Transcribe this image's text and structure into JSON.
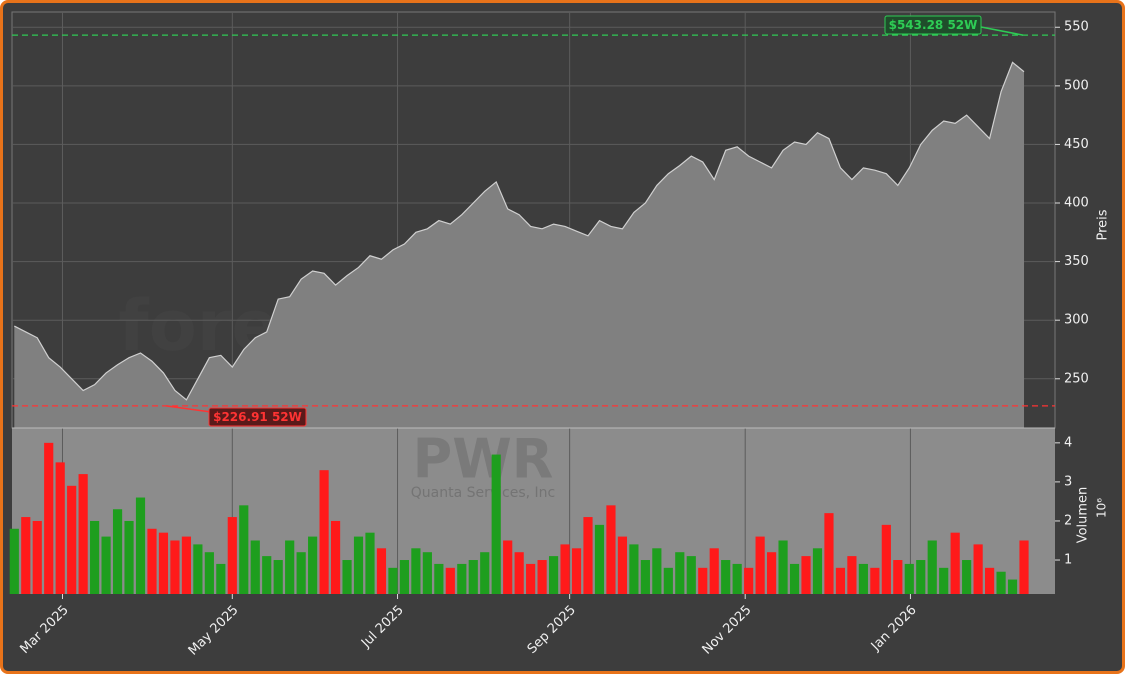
{
  "chart_data": {
    "type": "price-volume",
    "watermark": "forexsignale.trade",
    "symbol": "PWR",
    "company": "Quanta Services, Inc",
    "ylabel": "Preis",
    "y2label": "Volumen",
    "y2_offset": "10⁶",
    "xticks": [
      {
        "value": 4.2,
        "label": "Mar 2025"
      },
      {
        "value": 19,
        "label": "May 2025"
      },
      {
        "value": 33.4,
        "label": "Jul 2025"
      },
      {
        "value": 48.4,
        "label": "Sep 2025"
      },
      {
        "value": 63.7,
        "label": "Nov 2025"
      },
      {
        "value": 78.1,
        "label": "Jan 2026"
      }
    ],
    "xlim": [
      -0.2,
      90.7
    ],
    "ylim": [
      208,
      563
    ],
    "yticks": [
      250,
      300,
      350,
      400,
      450,
      500,
      550
    ],
    "y2lim": [
      0.13,
      4.38
    ],
    "y2ticks": [
      1,
      2,
      3,
      4
    ],
    "grid": true,
    "price_color": "#d0d0d0",
    "area_color": "#808080",
    "up_color": "#1e9e1e",
    "down_color": "#ff1a1a",
    "close": [
      295,
      290,
      285,
      268,
      260,
      250,
      240,
      245,
      255,
      262,
      268,
      272,
      265,
      255,
      240,
      232,
      250,
      268,
      270,
      260,
      275,
      285,
      290,
      318,
      320,
      335,
      342,
      340,
      330,
      338,
      345,
      355,
      352,
      360,
      365,
      375,
      378,
      385,
      382,
      390,
      400,
      410,
      418,
      395,
      390,
      380,
      378,
      382,
      380,
      376,
      372,
      385,
      380,
      378,
      392,
      400,
      415,
      425,
      432,
      440,
      435,
      420,
      445,
      448,
      440,
      435,
      430,
      445,
      452,
      450,
      460,
      455,
      430,
      420,
      430,
      428,
      425,
      415,
      430,
      450,
      462,
      470,
      468,
      475,
      465,
      455,
      495,
      520,
      512
    ],
    "volume": [
      1.8,
      2.1,
      2.0,
      4.0,
      3.5,
      2.9,
      3.2,
      2.0,
      1.6,
      2.3,
      2.0,
      2.6,
      1.8,
      1.7,
      1.5,
      1.6,
      1.4,
      1.2,
      0.9,
      2.1,
      2.4,
      1.5,
      1.1,
      1.0,
      1.5,
      1.2,
      1.6,
      3.3,
      2.0,
      1.0,
      1.6,
      1.7,
      1.3,
      0.8,
      1.0,
      1.3,
      1.2,
      0.9,
      0.8,
      0.9,
      1.0,
      1.2,
      3.7,
      1.5,
      1.2,
      0.9,
      1.0,
      1.1,
      1.4,
      1.3,
      2.1,
      1.9,
      2.4,
      1.6,
      1.4,
      1.0,
      1.3,
      0.8,
      1.2,
      1.1,
      0.8,
      1.3,
      1.0,
      0.9,
      0.8,
      1.6,
      1.2,
      1.5,
      0.9,
      1.1,
      1.3,
      2.2,
      0.8,
      1.1,
      0.9,
      0.8,
      1.9,
      1.0,
      0.9,
      1.0,
      1.5,
      0.8,
      1.7,
      1.0,
      1.4,
      0.8,
      0.7,
      0.5,
      1.5
    ],
    "high_52w": {
      "value": 543.28,
      "label": "$543.28 52W",
      "color": "#2ecc55"
    },
    "low_52w": {
      "value": 226.91,
      "label": "$226.91 52W",
      "color": "#ff3333"
    }
  }
}
